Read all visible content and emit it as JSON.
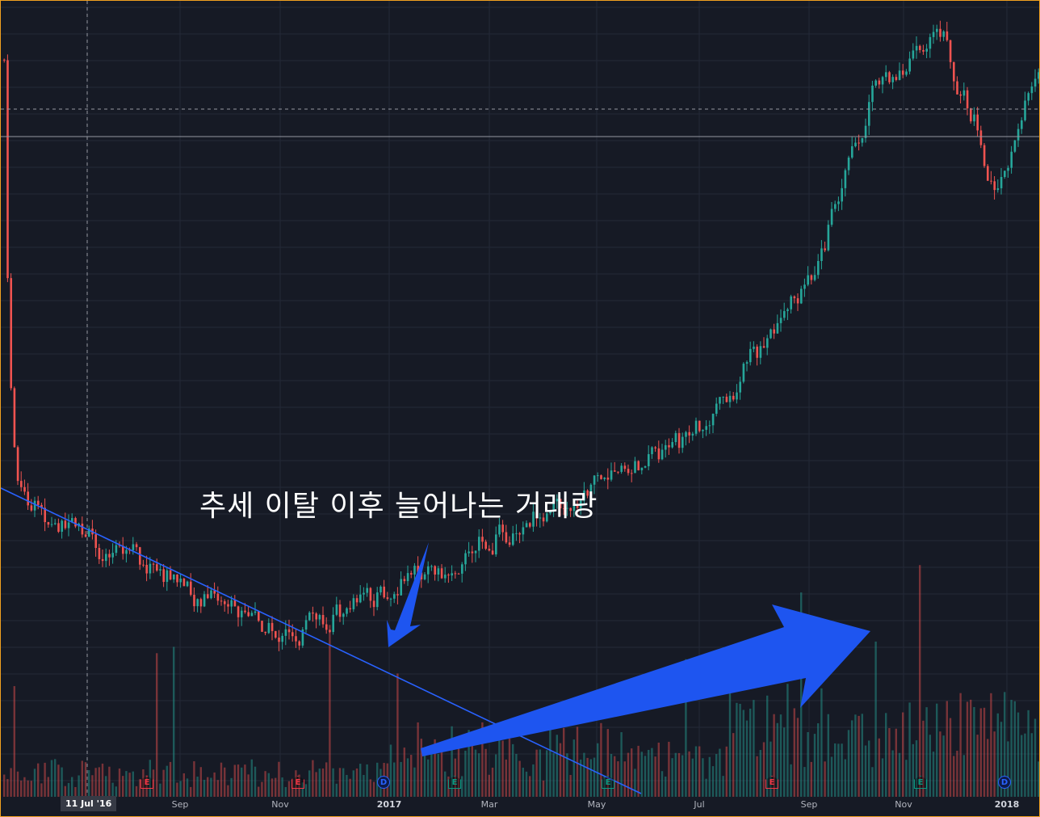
{
  "chart_data": {
    "type": "candlestick",
    "title": "",
    "x_axis": {
      "tick_labels": [
        "Sep",
        "Nov",
        "2017",
        "Mar",
        "May",
        "Jul",
        "Sep",
        "Nov",
        "2018"
      ],
      "crosshair_label": "11 Jul '16"
    },
    "price_trend": {
      "description_points": [
        {
          "date": "Jul '16",
          "relative_level": 0.3
        },
        {
          "date": "Nov '16",
          "relative_level": 0.12
        },
        {
          "date": "Jan '17",
          "relative_level": 0.18
        },
        {
          "date": "May '17",
          "relative_level": 0.32
        },
        {
          "date": "Jul '17",
          "relative_level": 0.4
        },
        {
          "date": "Sep '17",
          "relative_level": 0.6
        },
        {
          "date": "Oct '17",
          "relative_level": 0.85
        },
        {
          "date": "Nov '17",
          "relative_level": 0.92
        },
        {
          "date": "Dec '17",
          "relative_level": 0.7
        },
        {
          "date": "Jan '18",
          "relative_level": 0.88
        }
      ]
    },
    "events": [
      {
        "kind": "earnings",
        "glyph": "E",
        "near": "Aug '16",
        "color": "#f23645"
      },
      {
        "kind": "earnings",
        "glyph": "E",
        "near": "Nov '16",
        "color": "#f23645"
      },
      {
        "kind": "dividend",
        "glyph": "D",
        "near": "Jan '17",
        "color": "#2962ff"
      },
      {
        "kind": "earnings",
        "glyph": "E",
        "near": "Feb '17",
        "color": "#089981"
      },
      {
        "kind": "earnings",
        "glyph": "E",
        "near": "May '17",
        "color": "#089981"
      },
      {
        "kind": "earnings",
        "glyph": "E",
        "near": "Aug '17",
        "color": "#f23645"
      },
      {
        "kind": "earnings",
        "glyph": "E",
        "near": "Nov '17",
        "color": "#089981"
      },
      {
        "kind": "dividend",
        "glyph": "D",
        "near": "Jan '18",
        "color": "#2962ff"
      }
    ],
    "annotation": "추세 이탈 이후 늘어나는 거래랑",
    "colors": {
      "up": "#26a69a",
      "down": "#ef5350",
      "trendline": "#2962ff",
      "arrow": "#1e55f0"
    },
    "grid": true
  }
}
